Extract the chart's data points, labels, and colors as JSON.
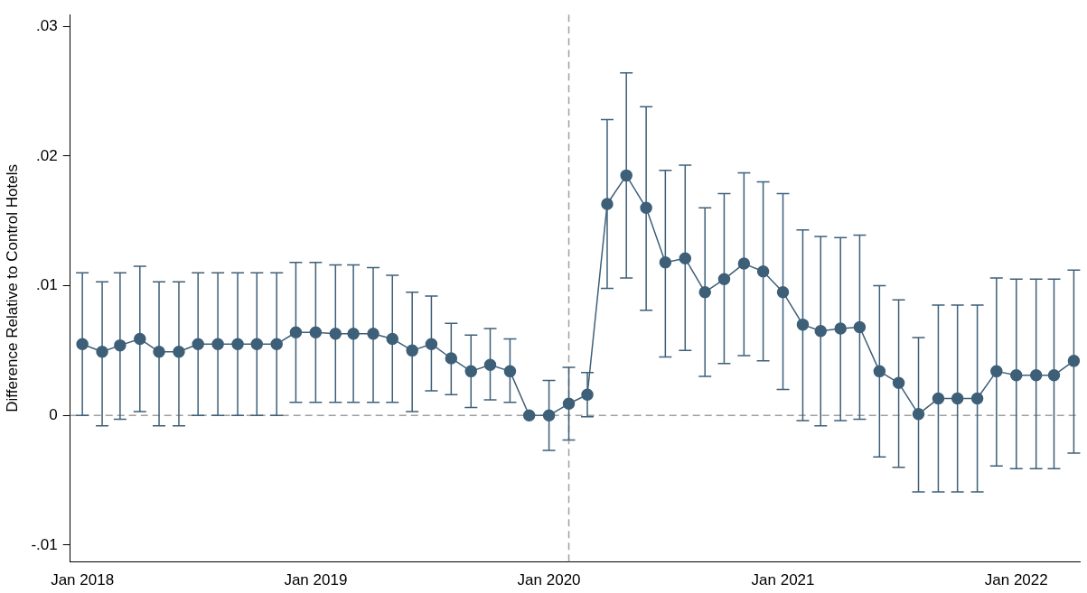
{
  "chart_data": {
    "type": "line",
    "ylabel": "Difference Relative to Control Hotels",
    "x": [
      "2018-01",
      "2018-02",
      "2018-03",
      "2018-04",
      "2018-05",
      "2018-06",
      "2018-07",
      "2018-08",
      "2018-09",
      "2018-10",
      "2018-11",
      "2018-12",
      "2019-01",
      "2019-02",
      "2019-03",
      "2019-04",
      "2019-05",
      "2019-06",
      "2019-07",
      "2019-08",
      "2019-09",
      "2019-10",
      "2019-11",
      "2019-12",
      "2020-01",
      "2020-02",
      "2020-03",
      "2020-04",
      "2020-05",
      "2020-06",
      "2020-07",
      "2020-08",
      "2020-09",
      "2020-10",
      "2020-11",
      "2020-12",
      "2021-01",
      "2021-02",
      "2021-03",
      "2021-04",
      "2021-05",
      "2021-06",
      "2021-07",
      "2021-08",
      "2021-09",
      "2021-10",
      "2021-11",
      "2021-12",
      "2022-01",
      "2022-02",
      "2022-03",
      "2022-04"
    ],
    "series": [
      {
        "color": "#3e5f78",
        "values": [
          0.0055,
          0.0049,
          0.0054,
          0.0059,
          0.0049,
          0.0049,
          0.0055,
          0.0055,
          0.0055,
          0.0055,
          0.0055,
          0.0064,
          0.0064,
          0.0063,
          0.0063,
          0.0063,
          0.0059,
          0.005,
          0.0055,
          0.0044,
          0.0034,
          0.0039,
          0.0034,
          0,
          0,
          0.0009,
          0.0016,
          0.0163,
          0.0185,
          0.016,
          0.0118,
          0.0121,
          0.0095,
          0.0105,
          0.0117,
          0.0111,
          0.0095,
          0.007,
          0.0065,
          0.0067,
          0.0068,
          0.0034,
          0.0025,
          0.0001,
          0.0013,
          0.0013,
          0.0013,
          0.0034,
          0.0031,
          0.0031,
          0.0031,
          0.0042
        ],
        "errors": [
          [
            0,
            0.011
          ],
          [
            -0.0008,
            0.0103
          ],
          [
            -0.0003,
            0.011
          ],
          [
            0.0003,
            0.0115
          ],
          [
            -0.0008,
            0.0103
          ],
          [
            -0.0008,
            0.0103
          ],
          [
            0,
            0.011
          ],
          [
            0,
            0.011
          ],
          [
            0,
            0.011
          ],
          [
            0,
            0.011
          ],
          [
            0,
            0.011
          ],
          [
            0.001,
            0.0118
          ],
          [
            0.001,
            0.0118
          ],
          [
            0.001,
            0.0116
          ],
          [
            0.001,
            0.0116
          ],
          [
            0.001,
            0.0114
          ],
          [
            0.001,
            0.0108
          ],
          [
            0.0003,
            0.0095
          ],
          [
            0.0019,
            0.0092
          ],
          [
            0.0016,
            0.0071
          ],
          [
            0.0006,
            0.0062
          ],
          [
            0.0012,
            0.0067
          ],
          [
            0.001,
            0.0059
          ],
          null,
          [
            -0.0027,
            0.0027
          ],
          [
            -0.0019,
            0.0037
          ],
          [
            -0.0001,
            0.0033
          ],
          [
            0.0098,
            0.0228
          ],
          [
            0.0106,
            0.0264
          ],
          [
            0.0081,
            0.0238
          ],
          [
            0.0045,
            0.0189
          ],
          [
            0.005,
            0.0193
          ],
          [
            0.003,
            0.016
          ],
          [
            0.004,
            0.0171
          ],
          [
            0.0046,
            0.0187
          ],
          [
            0.0042,
            0.018
          ],
          [
            0.002,
            0.0171
          ],
          [
            -0.0004,
            0.0143
          ],
          [
            -0.0008,
            0.0138
          ],
          [
            -0.0004,
            0.0137
          ],
          [
            -0.0003,
            0.0139
          ],
          [
            -0.0032,
            0.01
          ],
          [
            -0.004,
            0.0089
          ],
          [
            -0.0059,
            0.006
          ],
          [
            -0.0059,
            0.0085
          ],
          [
            -0.0059,
            0.0085
          ],
          [
            -0.0059,
            0.0085
          ],
          [
            -0.0039,
            0.0106
          ],
          [
            -0.0041,
            0.0105
          ],
          [
            -0.0041,
            0.0105
          ],
          [
            -0.0041,
            0.0105
          ],
          [
            -0.0029,
            0.0112
          ]
        ]
      }
    ],
    "xlim": [
      "2017-12-13",
      "2022-04-11"
    ],
    "xticks": [
      {
        "value": "2018-01",
        "label": "Jan 2018"
      },
      {
        "value": "2019-01",
        "label": "Jan 2019"
      },
      {
        "value": "2020-01",
        "label": "Jan 2020"
      },
      {
        "value": "2021-01",
        "label": "Jan 2021"
      },
      {
        "value": "2022-01",
        "label": "Jan 2022"
      }
    ],
    "ylim": [
      -0.0113,
      0.0309
    ],
    "yticks": [
      {
        "value": -0.01,
        "label": "-.01"
      },
      0,
      {
        "value": 0.01,
        "label": ".01"
      },
      {
        "value": 0.02,
        "label": ".02"
      },
      {
        "value": 0.03,
        "label": ".03"
      }
    ],
    "ref_lines": [
      {
        "axis": "y",
        "value": 0,
        "color": "#a0a0a0",
        "line_style": "dashed"
      },
      {
        "axis": "x",
        "value": "2020-02",
        "color": "#a0a0a0",
        "line_style": "dashed"
      }
    ],
    "grid": false,
    "legend": false,
    "marker": "circle",
    "line_style": "solid"
  }
}
